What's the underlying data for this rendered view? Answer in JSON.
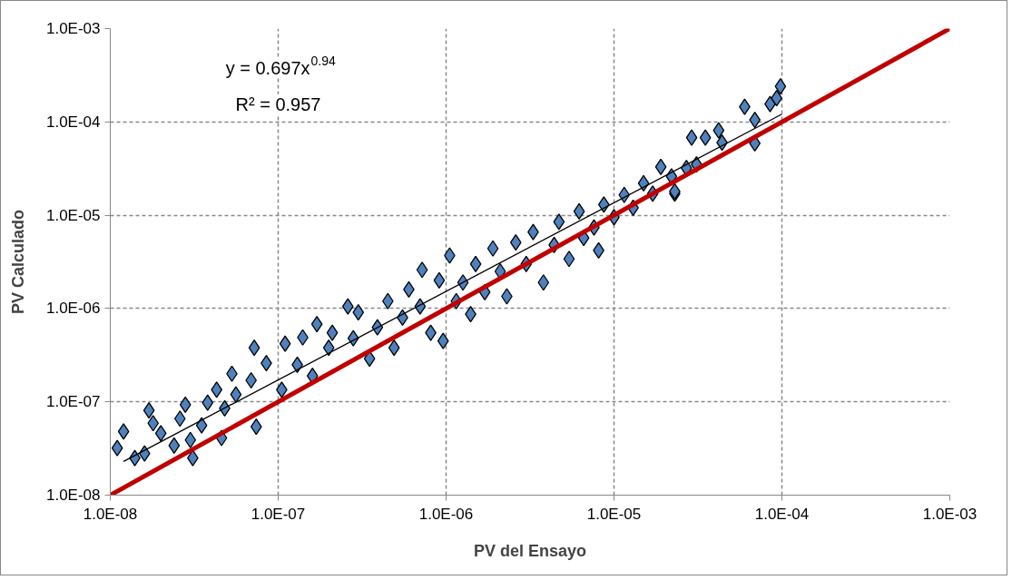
{
  "chart_data": {
    "type": "scatter",
    "xlabel": "PV del Ensayo",
    "ylabel": "PV Calculado",
    "log": "xy",
    "grid": true,
    "marker": "diamond",
    "xlim": [
      1e-08,
      0.001
    ],
    "ylim": [
      1e-08,
      0.001
    ],
    "xticks": [
      {
        "value": 1e-08,
        "label": "1.0E-08"
      },
      {
        "value": 1e-07,
        "label": "1.0E-07"
      },
      {
        "value": 1e-06,
        "label": "1.0E-06"
      },
      {
        "value": 1e-05,
        "label": "1.0E-05"
      },
      {
        "value": 0.0001,
        "label": "1.0E-04"
      },
      {
        "value": 0.001,
        "label": "1.0E-03"
      }
    ],
    "yticks": [
      {
        "value": 1e-08,
        "label": "1.0E-08"
      },
      {
        "value": 1e-07,
        "label": "1.0E-07"
      },
      {
        "value": 1e-06,
        "label": "1.0E-06"
      },
      {
        "value": 1e-05,
        "label": "1.0E-05"
      },
      {
        "value": 0.0001,
        "label": "1.0E-04"
      },
      {
        "value": 0.001,
        "label": "1.0E-03"
      }
    ],
    "annotations": [
      "y = 0.697x$^{0.94}$",
      "R² = 0.957"
    ],
    "series": [
      {
        "color": "#4f81bd",
        "x": [
          1.1e-08,
          1.2e-08,
          1.4e-08,
          1.6e-08,
          1.7e-08,
          1.8e-08,
          2e-08,
          2.4e-08,
          2.6e-08,
          2.8e-08,
          3e-08,
          3.1e-08,
          3.5e-08,
          3.8e-08,
          4.3e-08,
          4.6e-08,
          4.8e-08,
          5.3e-08,
          5.6e-08,
          6.9e-08,
          7.2e-08,
          7.4e-08,
          8.5e-08,
          1.05e-07,
          1.1e-07,
          1.3e-07,
          1.4e-07,
          1.6e-07,
          1.7e-07,
          2e-07,
          2.1e-07,
          2.6e-07,
          2.8e-07,
          3e-07,
          3.5e-07,
          3.9e-07,
          4.5e-07,
          4.9e-07,
          5.5e-07,
          6e-07,
          7e-07,
          7.2e-07,
          8.1e-07,
          9.1e-07,
          9.6e-07,
          1.05e-06,
          1.15e-06,
          1.26e-06,
          1.4e-06,
          1.5e-06,
          1.7e-06,
          1.9e-06,
          2.1e-06,
          2.3e-06,
          2.6e-06,
          3e-06,
          3.3e-06,
          3.8e-06,
          4.4e-06,
          4.7e-06,
          5.4e-06,
          6.2e-06,
          6.6e-06,
          7.6e-06,
          8.1e-06,
          8.7e-06,
          1e-05,
          1.15e-05,
          1.3e-05,
          1.5e-05,
          1.7e-05,
          1.9e-05,
          2.2e-05,
          2.3e-05,
          2.3e-05,
          2.7e-05,
          2.9e-05,
          3.1e-05,
          3.5e-05,
          4.2e-05,
          4.4e-05,
          6e-05,
          6.9e-05,
          6.9e-05,
          8.5e-05,
          9.3e-05,
          9.8e-05
        ],
        "values": [
          3.2e-08,
          4.8e-08,
          2.5e-08,
          2.8e-08,
          8.1e-08,
          5.9e-08,
          4.6e-08,
          3.4e-08,
          6.6e-08,
          9.3e-08,
          3.9e-08,
          2.5e-08,
          5.6e-08,
          9.8e-08,
          1.35e-07,
          4.1e-08,
          8.5e-08,
          2e-07,
          1.2e-07,
          1.7e-07,
          3.8e-07,
          5.4e-08,
          2.6e-07,
          1.35e-07,
          4.2e-07,
          2.5e-07,
          4.9e-07,
          1.9e-07,
          6.8e-07,
          3.8e-07,
          5.5e-07,
          1.05e-06,
          4.8e-07,
          9.1e-07,
          2.9e-07,
          6.3e-07,
          1.2e-06,
          3.8e-07,
          8e-07,
          1.6e-06,
          1.05e-06,
          2.6e-06,
          5.5e-07,
          2e-06,
          4.5e-07,
          3.7e-06,
          1.2e-06,
          1.9e-06,
          8.7e-07,
          3e-06,
          1.5e-06,
          4.4e-06,
          2.5e-06,
          1.35e-06,
          5.1e-06,
          3e-06,
          6.6e-06,
          1.9e-06,
          4.8e-06,
          8.5e-06,
          3.4e-06,
          1.1e-05,
          5.7e-06,
          7.4e-06,
          4.2e-06,
          1.3e-05,
          9.5e-06,
          1.65e-05,
          1.2e-05,
          2.2e-05,
          1.7e-05,
          3.3e-05,
          2.6e-05,
          1.7e-05,
          1.8e-05,
          3.2e-05,
          6.8e-05,
          3.5e-05,
          6.8e-05,
          8.1e-05,
          6e-05,
          0.000145,
          0.000105,
          5.9e-05,
          0.000155,
          0.00018,
          0.00024
        ]
      },
      {
        "type": "line",
        "marker": "none",
        "color": "#000000",
        "x": [
          1.2e-08,
          0.0001
        ],
        "values": [
          2.3e-08,
          0.000121
        ]
      },
      {
        "type": "line",
        "marker": "none",
        "color": "#c00000",
        "x": [
          1e-08,
          0.001
        ],
        "values": [
          1e-08,
          0.001
        ]
      }
    ]
  }
}
